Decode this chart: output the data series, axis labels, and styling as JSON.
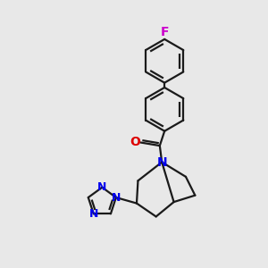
{
  "bg_color": "#e8e8e8",
  "bond_color": "#1a1a1a",
  "N_color": "#0000ee",
  "O_color": "#dd0000",
  "F_color": "#cc00cc",
  "lw": 1.6,
  "figsize": [
    3.0,
    3.0
  ],
  "dpi": 100,
  "xlim": [
    0,
    10
  ],
  "ylim": [
    0,
    10
  ]
}
